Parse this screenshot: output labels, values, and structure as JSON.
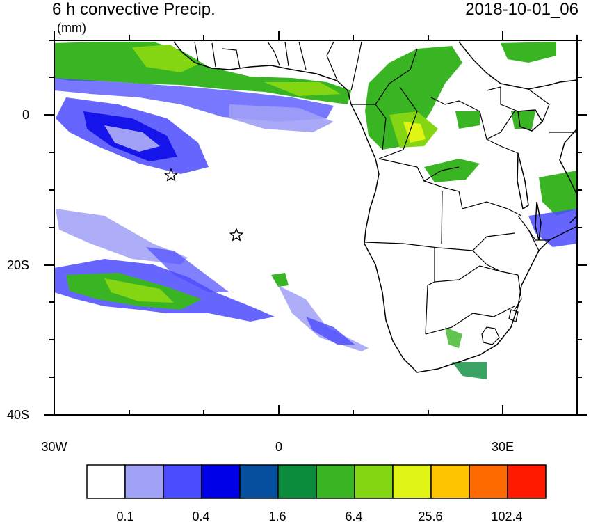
{
  "title": "6 h convective Precip.",
  "timestamp": "2018-10-01_06",
  "units": "(mm)",
  "map": {
    "lon_range": [
      -30,
      40
    ],
    "lat_range": [
      -40,
      10
    ],
    "x_tick_labels": [
      "30W",
      "0",
      "30E"
    ],
    "y_tick_labels": [
      "0",
      "20S",
      "40S"
    ],
    "markers": [
      {
        "name": "star",
        "lon": -14.5,
        "lat": -8
      },
      {
        "name": "star",
        "lon": -5.7,
        "lat": -16
      }
    ]
  },
  "colorbar": {
    "colors": [
      "#ffffff",
      "#a0a0f7",
      "#4b4bff",
      "#0000e6",
      "#064f9e",
      "#0a8c3c",
      "#39b523",
      "#85d612",
      "#e0f516",
      "#ffc300",
      "#ff6a00",
      "#ff1a00"
    ],
    "labels": [
      "0.1",
      "0.4",
      "1.6",
      "6.4",
      "25.6",
      "102.4"
    ]
  },
  "colors": {
    "land_outline": "#000000",
    "frame": "#000000"
  }
}
